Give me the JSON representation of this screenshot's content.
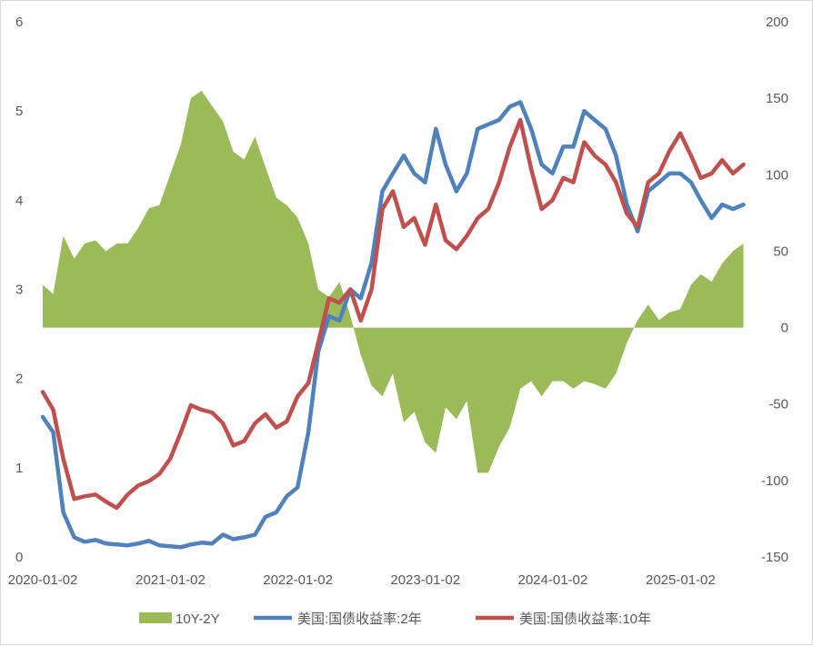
{
  "chart_data": {
    "type": "line",
    "title": "",
    "x_tick_labels": [
      "2020-01-02",
      "2021-01-02",
      "2022-01-02",
      "2023-01-02",
      "2024-01-02",
      "2025-01-02"
    ],
    "x_range": [
      "2020-01-02",
      "2025-07-31"
    ],
    "y_left_range": [
      0,
      6
    ],
    "y_left_ticks": [
      "0",
      "1",
      "2",
      "3",
      "4",
      "5",
      "6"
    ],
    "y_right_range": [
      -150,
      200
    ],
    "y_right_ticks": [
      "-150",
      "-100",
      "-50",
      "0",
      "50",
      "100",
      "150",
      "200"
    ],
    "grid": false,
    "legend_position": "bottom",
    "x": [
      "2020-01-02",
      "2020-02-01",
      "2020-03-01",
      "2020-04-01",
      "2020-05-01",
      "2020-06-01",
      "2020-07-01",
      "2020-08-01",
      "2020-09-01",
      "2020-10-01",
      "2020-11-01",
      "2020-12-01",
      "2021-01-01",
      "2021-02-01",
      "2021-03-01",
      "2021-04-01",
      "2021-05-01",
      "2021-06-01",
      "2021-07-01",
      "2021-08-01",
      "2021-09-01",
      "2021-10-01",
      "2021-11-01",
      "2021-12-01",
      "2022-01-01",
      "2022-02-01",
      "2022-03-01",
      "2022-04-01",
      "2022-05-01",
      "2022-06-01",
      "2022-07-01",
      "2022-08-01",
      "2022-09-01",
      "2022-10-01",
      "2022-11-01",
      "2022-12-01",
      "2023-01-01",
      "2023-02-01",
      "2023-03-01",
      "2023-04-01",
      "2023-05-01",
      "2023-06-01",
      "2023-07-01",
      "2023-08-01",
      "2023-09-01",
      "2023-10-01",
      "2023-11-01",
      "2023-12-01",
      "2024-01-01",
      "2024-02-01",
      "2024-03-01",
      "2024-04-01",
      "2024-05-01",
      "2024-06-01",
      "2024-07-01",
      "2024-08-01",
      "2024-09-01",
      "2024-10-01",
      "2024-11-01",
      "2024-12-01",
      "2025-01-01",
      "2025-02-01",
      "2025-03-01",
      "2025-04-01",
      "2025-05-01",
      "2025-06-01",
      "2025-07-01"
    ],
    "series": [
      {
        "name": "10Y-2Y",
        "type": "area",
        "axis": "right",
        "color": "#9bbb59",
        "values": [
          28,
          22,
          60,
          45,
          55,
          57,
          50,
          55,
          55,
          65,
          78,
          80,
          100,
          120,
          150,
          155,
          145,
          135,
          115,
          110,
          125,
          105,
          85,
          80,
          72,
          55,
          25,
          20,
          30,
          8,
          -18,
          -38,
          -45,
          -30,
          -62,
          -55,
          -75,
          -82,
          -52,
          -60,
          -48,
          -95,
          -95,
          -78,
          -65,
          -40,
          -35,
          -45,
          -35,
          -35,
          -40,
          -35,
          -37,
          -40,
          -30,
          -10,
          5,
          15,
          5,
          10,
          12,
          28,
          35,
          30,
          42,
          50,
          55
        ]
      },
      {
        "name": "美国:国债收益率:2年",
        "type": "line",
        "axis": "left",
        "color": "#4f81bd",
        "values": [
          1.57,
          1.4,
          0.5,
          0.22,
          0.17,
          0.19,
          0.15,
          0.14,
          0.13,
          0.15,
          0.18,
          0.13,
          0.12,
          0.11,
          0.14,
          0.16,
          0.15,
          0.25,
          0.2,
          0.22,
          0.25,
          0.45,
          0.5,
          0.68,
          0.78,
          1.4,
          2.3,
          2.7,
          2.65,
          3.0,
          2.9,
          3.3,
          4.1,
          4.3,
          4.5,
          4.3,
          4.2,
          4.8,
          4.4,
          4.1,
          4.3,
          4.8,
          4.85,
          4.9,
          5.05,
          5.1,
          4.8,
          4.4,
          4.3,
          4.6,
          4.6,
          5.0,
          4.9,
          4.8,
          4.5,
          3.95,
          3.65,
          4.1,
          4.2,
          4.3,
          4.3,
          4.2,
          4.0,
          3.8,
          3.95,
          3.9,
          3.95
        ]
      },
      {
        "name": "美国:国债收益率:10年",
        "type": "line",
        "axis": "left",
        "color": "#c0504d",
        "values": [
          1.85,
          1.65,
          1.1,
          0.65,
          0.68,
          0.7,
          0.62,
          0.55,
          0.7,
          0.8,
          0.85,
          0.93,
          1.1,
          1.4,
          1.7,
          1.65,
          1.62,
          1.5,
          1.25,
          1.3,
          1.5,
          1.6,
          1.45,
          1.52,
          1.8,
          1.95,
          2.4,
          2.9,
          2.85,
          3.0,
          2.65,
          3.0,
          3.9,
          4.1,
          3.7,
          3.8,
          3.5,
          3.95,
          3.55,
          3.45,
          3.6,
          3.8,
          3.9,
          4.2,
          4.6,
          4.9,
          4.35,
          3.9,
          4.0,
          4.25,
          4.2,
          4.65,
          4.5,
          4.4,
          4.2,
          3.85,
          3.7,
          4.2,
          4.3,
          4.55,
          4.75,
          4.5,
          4.25,
          4.3,
          4.45,
          4.3,
          4.4
        ]
      }
    ]
  }
}
